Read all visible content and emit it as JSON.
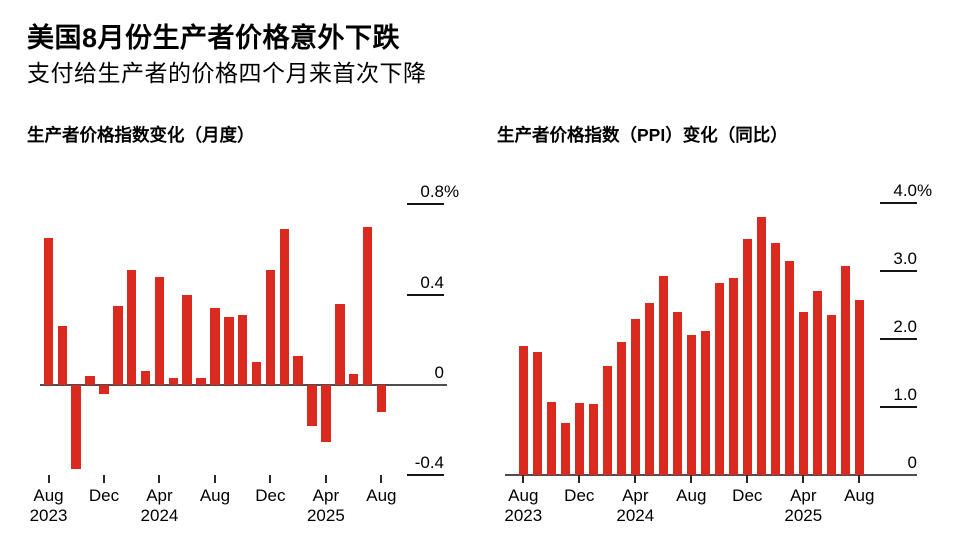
{
  "header": {
    "title": "美国8月份生产者价格意外下跌",
    "subtitle": "支付给生产者的价格四个月来首次下降"
  },
  "colors": {
    "bar_red": "#da291f",
    "axis_gray": "#4e4e50",
    "text_black": "#000000"
  },
  "chart_data": [
    {
      "type": "bar",
      "title": "生产者价格指数变化（月度）",
      "unit": "%",
      "legend_position": "none",
      "grid": "zero-line-only",
      "x": [
        "Aug 2023",
        "Sep 2023",
        "Oct 2023",
        "Nov 2023",
        "Dec 2023",
        "Jan 2024",
        "Feb 2024",
        "Mar 2024",
        "Apr 2024",
        "May 2024",
        "Jun 2024",
        "Jul 2024",
        "Aug 2024",
        "Sep 2024",
        "Oct 2024",
        "Nov 2024",
        "Dec 2024",
        "Jan 2025",
        "Feb 2025",
        "Mar 2025",
        "Apr 2025",
        "May 2025",
        "Jun 2025",
        "Jul 2025",
        "Aug 2025"
      ],
      "values": [
        0.65,
        0.26,
        -0.37,
        0.04,
        -0.04,
        0.35,
        0.51,
        0.06,
        0.48,
        0.03,
        0.4,
        0.03,
        0.34,
        0.3,
        0.31,
        0.1,
        0.51,
        0.69,
        0.13,
        -0.18,
        -0.25,
        0.36,
        0.05,
        0.7,
        -0.12
      ],
      "ylim": [
        -0.55,
        0.9
      ],
      "yticks": [
        {
          "label": "0.8%",
          "value": 0.8
        },
        {
          "label": "0.4",
          "value": 0.4
        },
        {
          "label": "0",
          "value": 0
        },
        {
          "label": "-0.4",
          "value": -0.4
        }
      ],
      "xticks": [
        {
          "month": "Aug",
          "year": "2023",
          "index": 0
        },
        {
          "month": "Dec",
          "year": "",
          "index": 4
        },
        {
          "month": "Apr",
          "year": "2024",
          "index": 8
        },
        {
          "month": "Aug",
          "year": "",
          "index": 12
        },
        {
          "month": "Dec",
          "year": "",
          "index": 16
        },
        {
          "month": "Apr",
          "year": "2025",
          "index": 20
        },
        {
          "month": "Aug",
          "year": "",
          "index": 24
        }
      ],
      "bar_color": "#da291f"
    },
    {
      "type": "bar",
      "title": "生产者价格指数（PPI）变化（同比）",
      "unit": "%",
      "legend_position": "none",
      "grid": "baseline-only",
      "x": [
        "Aug 2023",
        "Sep 2023",
        "Oct 2023",
        "Nov 2023",
        "Dec 2023",
        "Jan 2024",
        "Feb 2024",
        "Mar 2024",
        "Apr 2024",
        "May 2024",
        "Jun 2024",
        "Jul 2024",
        "Aug 2024",
        "Sep 2024",
        "Oct 2024",
        "Nov 2024",
        "Dec 2024",
        "Jan 2025",
        "Feb 2025",
        "Mar 2025",
        "Apr 2025",
        "May 2025",
        "Jun 2025",
        "Jul 2025",
        "Aug 2025"
      ],
      "values": [
        1.9,
        1.81,
        1.08,
        0.77,
        1.06,
        1.04,
        1.61,
        1.96,
        2.29,
        2.53,
        2.92,
        2.39,
        2.06,
        2.12,
        2.82,
        2.89,
        3.47,
        3.79,
        3.41,
        3.14,
        2.39,
        2.71,
        2.36,
        3.07,
        2.58
      ],
      "ylim": [
        0,
        4.2
      ],
      "yticks": [
        {
          "label": "4.0%",
          "value": 4.0
        },
        {
          "label": "3.0",
          "value": 3.0
        },
        {
          "label": "2.0",
          "value": 2.0
        },
        {
          "label": "1.0",
          "value": 1.0
        },
        {
          "label": "0",
          "value": 0
        }
      ],
      "xticks": [
        {
          "month": "Aug",
          "year": "2023",
          "index": 0
        },
        {
          "month": "Dec",
          "year": "",
          "index": 4
        },
        {
          "month": "Apr",
          "year": "2024",
          "index": 8
        },
        {
          "month": "Aug",
          "year": "",
          "index": 12
        },
        {
          "month": "Dec",
          "year": "",
          "index": 16
        },
        {
          "month": "Apr",
          "year": "2025",
          "index": 20
        },
        {
          "month": "Aug",
          "year": "",
          "index": 24
        }
      ],
      "bar_color": "#da291f"
    }
  ]
}
